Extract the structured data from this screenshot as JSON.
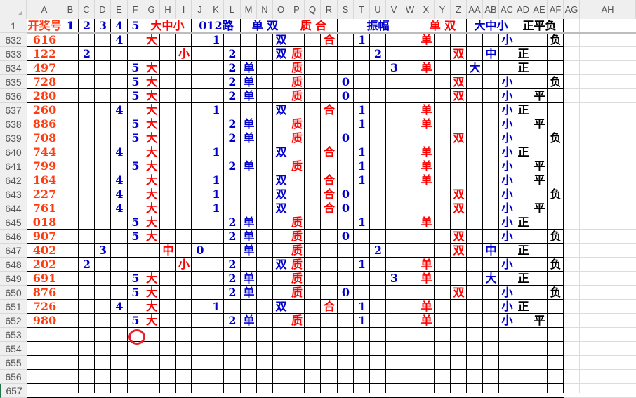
{
  "colors": {
    "number": "#ff3b10",
    "blue": "#0000cc",
    "red": "#ff0000",
    "black": "#000000",
    "annotation": "#e8202a"
  },
  "columns": [
    "A",
    "B",
    "C",
    "D",
    "E",
    "F",
    "G",
    "H",
    "I",
    "J",
    "K",
    "L",
    "M",
    "N",
    "O",
    "P",
    "Q",
    "R",
    "S",
    "T",
    "U",
    "V",
    "W",
    "X",
    "Y",
    "Z",
    "AA",
    "AB",
    "AC",
    "AD",
    "AE",
    "AF",
    "AG",
    "AH"
  ],
  "column_color_groups": {
    "A": "number",
    "B": "blue",
    "C": "blue",
    "D": "blue",
    "E": "blue",
    "F": "blue",
    "G": "red",
    "H": "red",
    "I": "red",
    "J": "blue",
    "K": "blue",
    "L": "blue",
    "M": "blue",
    "N": "blue",
    "O": "blue",
    "P": "red",
    "Q": "red",
    "R": "red",
    "S": "blue",
    "T": "blue",
    "U": "blue",
    "V": "blue",
    "W": "blue",
    "X": "red",
    "Y": "red",
    "Z": "red",
    "AA": "blue",
    "AB": "blue",
    "AC": "blue",
    "AD": "black",
    "AE": "black",
    "AF": "black"
  },
  "header_row": {
    "row": "1",
    "groups": [
      {
        "from": "A",
        "to": "A",
        "label": "开奖号",
        "color": "number"
      },
      {
        "from": "B",
        "to": "B",
        "label": "1",
        "color": "blue"
      },
      {
        "from": "C",
        "to": "C",
        "label": "2",
        "color": "blue"
      },
      {
        "from": "D",
        "to": "D",
        "label": "3",
        "color": "blue"
      },
      {
        "from": "E",
        "to": "E",
        "label": "4",
        "color": "blue"
      },
      {
        "from": "F",
        "to": "F",
        "label": "5",
        "color": "blue"
      },
      {
        "from": "G",
        "to": "I",
        "label": "大中小",
        "color": "red"
      },
      {
        "from": "J",
        "to": "L",
        "label": "012路",
        "color": "blue"
      },
      {
        "from": "M",
        "to": "O",
        "label": "单 双",
        "color": "blue"
      },
      {
        "from": "P",
        "to": "R",
        "label": "质 合",
        "color": "red"
      },
      {
        "from": "S",
        "to": "W",
        "label": "振幅",
        "color": "blue"
      },
      {
        "from": "X",
        "to": "Z",
        "label": "单 双",
        "color": "red"
      },
      {
        "from": "AA",
        "to": "AC",
        "label": "大中小",
        "color": "blue"
      },
      {
        "from": "AD",
        "to": "AF",
        "label": "正平负",
        "color": "black"
      }
    ]
  },
  "rows": [
    {
      "row": "632",
      "A": "616",
      "E": "4",
      "G": "大",
      "K": "1",
      "O": "双",
      "R": "合",
      "T": "1",
      "X": "单",
      "AC": "小",
      "AF": "负"
    },
    {
      "row": "633",
      "A": "122",
      "C": "2",
      "I": "小",
      "L": "2",
      "O": "双",
      "P": "质",
      "U": "2",
      "Z": "双",
      "AB": "中",
      "AD": "正"
    },
    {
      "row": "634",
      "A": "497",
      "F": "5",
      "G": "大",
      "L": "2",
      "M": "单",
      "P": "质",
      "V": "3",
      "X": "单",
      "AA": "大",
      "AD": "正"
    },
    {
      "row": "635",
      "A": "728",
      "F": "5",
      "G": "大",
      "L": "2",
      "M": "单",
      "P": "质",
      "S": "0",
      "Z": "双",
      "AC": "小",
      "AF": "负"
    },
    {
      "row": "636",
      "A": "280",
      "F": "5",
      "G": "大",
      "L": "2",
      "M": "单",
      "P": "质",
      "S": "0",
      "Z": "双",
      "AC": "小",
      "AE": "平"
    },
    {
      "row": "637",
      "A": "260",
      "E": "4",
      "G": "大",
      "K": "1",
      "O": "双",
      "R": "合",
      "T": "1",
      "X": "单",
      "AC": "小",
      "AD": "正"
    },
    {
      "row": "638",
      "A": "886",
      "F": "5",
      "G": "大",
      "L": "2",
      "M": "单",
      "P": "质",
      "T": "1",
      "X": "单",
      "AC": "小",
      "AE": "平"
    },
    {
      "row": "639",
      "A": "708",
      "F": "5",
      "G": "大",
      "L": "2",
      "M": "单",
      "P": "质",
      "S": "0",
      "Z": "双",
      "AC": "小",
      "AF": "负"
    },
    {
      "row": "640",
      "A": "744",
      "E": "4",
      "G": "大",
      "K": "1",
      "O": "双",
      "R": "合",
      "T": "1",
      "X": "单",
      "AC": "小",
      "AD": "正"
    },
    {
      "row": "641",
      "A": "799",
      "F": "5",
      "G": "大",
      "L": "2",
      "M": "单",
      "P": "质",
      "T": "1",
      "X": "单",
      "AC": "小",
      "AE": "平"
    },
    {
      "row": "642",
      "A": "164",
      "E": "4",
      "G": "大",
      "K": "1",
      "O": "双",
      "R": "合",
      "T": "1",
      "X": "单",
      "AC": "小",
      "AE": "平"
    },
    {
      "row": "643",
      "A": "227",
      "E": "4",
      "G": "大",
      "K": "1",
      "O": "双",
      "R": "合",
      "S": "0",
      "Z": "双",
      "AC": "小",
      "AF": "负"
    },
    {
      "row": "644",
      "A": "761",
      "E": "4",
      "G": "大",
      "K": "1",
      "O": "双",
      "R": "合",
      "S": "0",
      "Z": "双",
      "AC": "小",
      "AE": "平"
    },
    {
      "row": "645",
      "A": "018",
      "F": "5",
      "G": "大",
      "L": "2",
      "M": "单",
      "P": "质",
      "T": "1",
      "X": "单",
      "AC": "小",
      "AD": "正"
    },
    {
      "row": "646",
      "A": "907",
      "F": "5",
      "G": "大",
      "L": "2",
      "M": "单",
      "P": "质",
      "S": "0",
      "Z": "双",
      "AC": "小",
      "AF": "负"
    },
    {
      "row": "647",
      "A": "402",
      "D": "3",
      "H": "中",
      "J": "0",
      "M": "单",
      "P": "质",
      "U": "2",
      "Z": "双",
      "AB": "中",
      "AD": "正"
    },
    {
      "row": "648",
      "A": "202",
      "C": "2",
      "I": "小",
      "L": "2",
      "O": "双",
      "P": "质",
      "T": "1",
      "X": "单",
      "AC": "小",
      "AF": "负"
    },
    {
      "row": "649",
      "A": "691",
      "F": "5",
      "G": "大",
      "L": "2",
      "M": "单",
      "P": "质",
      "V": "3",
      "X": "单",
      "AB": "大",
      "AD": "正"
    },
    {
      "row": "650",
      "A": "876",
      "F": "5",
      "G": "大",
      "L": "2",
      "M": "单",
      "P": "质",
      "S": "0",
      "Z": "双",
      "AC": "小",
      "AF": "负"
    },
    {
      "row": "651",
      "A": "726",
      "E": "4",
      "G": "大",
      "K": "1",
      "O": "双",
      "R": "合",
      "T": "1",
      "X": "单",
      "AC": "小",
      "AD": "正"
    },
    {
      "row": "652",
      "A": "980",
      "F": "5",
      "G": "大",
      "L": "2",
      "M": "单",
      "P": "质",
      "T": "1",
      "X": "单",
      "AC": "小",
      "AE": "平"
    },
    {
      "row": "653"
    },
    {
      "row": "654"
    },
    {
      "row": "655"
    },
    {
      "row": "656"
    },
    {
      "row": "657"
    }
  ]
}
